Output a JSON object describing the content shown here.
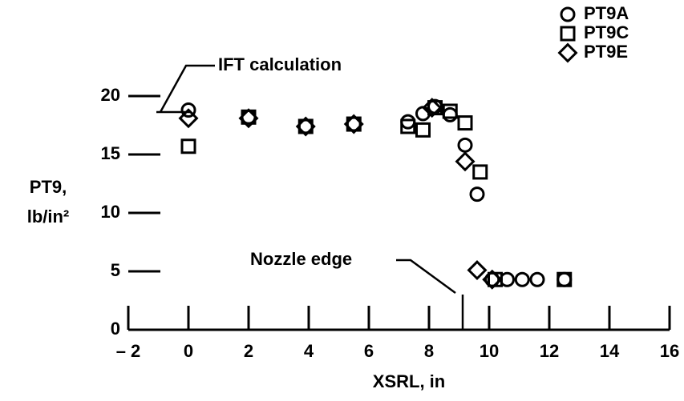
{
  "chart_data": {
    "type": "scatter",
    "xlabel": "XSRL, in",
    "ylabel": [
      "PT9,",
      "lb/in²"
    ],
    "annotations": [
      "IFT calculation",
      "Nozzle edge"
    ],
    "xlim": [
      -2,
      16
    ],
    "xticks": [
      {
        "value": -2,
        "label": "– 2"
      },
      0,
      2,
      4,
      6,
      8,
      10,
      12,
      14,
      16
    ],
    "ylim": [
      0,
      20
    ],
    "yticks": [
      0,
      5,
      10,
      15,
      20
    ],
    "legend": "top-right",
    "series": [
      {
        "name": "PT9A",
        "marker": "circle",
        "color": "#000000",
        "x": [
          0,
          2,
          3.9,
          5.5,
          7.3,
          7.8,
          8.2,
          8.7,
          9.2,
          9.6,
          10.1,
          10.6,
          11.1,
          11.6,
          12.5
        ],
        "values": [
          18.8,
          18.2,
          17.4,
          17.6,
          17.8,
          18.5,
          19.1,
          18.4,
          15.8,
          11.6,
          4.3,
          4.3,
          4.3,
          4.3,
          4.3
        ]
      },
      {
        "name": "PT9C",
        "marker": "square",
        "color": "#000000",
        "x": [
          0,
          2,
          3.9,
          5.5,
          7.3,
          7.8,
          8.2,
          8.7,
          9.2,
          9.7,
          10.2,
          12.5
        ],
        "values": [
          15.7,
          18.2,
          17.4,
          17.6,
          17.4,
          17.1,
          19.0,
          18.7,
          17.7,
          13.5,
          4.3,
          4.3
        ]
      },
      {
        "name": "PT9E",
        "marker": "diamond",
        "color": "#000000",
        "x": [
          0,
          2,
          3.9,
          5.5,
          8.1,
          9.2,
          9.6,
          10.1
        ],
        "values": [
          18.1,
          18.1,
          17.4,
          17.6,
          19.0,
          14.4,
          5.1,
          4.3
        ]
      }
    ]
  }
}
